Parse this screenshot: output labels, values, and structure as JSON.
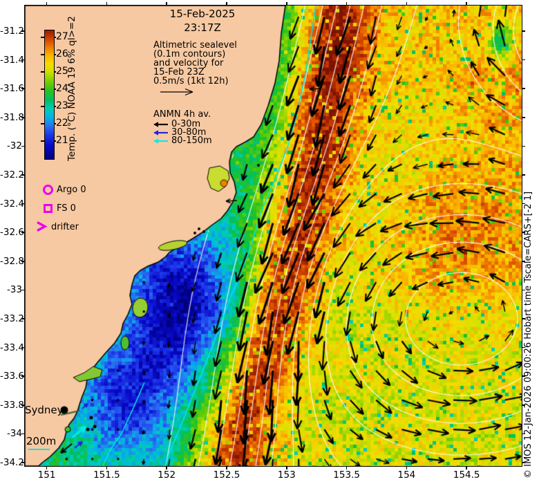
{
  "title": {
    "line1": "15-Feb-2025",
    "line2": "23:17Z"
  },
  "annotation": {
    "lines": [
      "Altimetric sealevel",
      "(0.1m contours)",
      "and velocity for",
      "15-Feb 23Z",
      "0.5m/s (1kt 12h)"
    ]
  },
  "anmn": {
    "title": "ANMN 4h av.",
    "entries": [
      {
        "label": "0-30m",
        "color": "#000000"
      },
      {
        "label": "30-80m",
        "color": "#2222dd"
      },
      {
        "label": "80-150m",
        "color": "#00eeee"
      }
    ]
  },
  "markers": [
    {
      "label": "Argo 0",
      "shape": "circle",
      "color": "#ee00ee"
    },
    {
      "label": "FS 0",
      "shape": "square",
      "color": "#ee00ee"
    },
    {
      "label": "drifter",
      "shape": "chevron",
      "color": "#ee00ee"
    }
  ],
  "colorbar": {
    "label": "Temp. (°C) NOAA 19 6% ql>=2",
    "ticks": [
      27,
      26,
      25,
      24,
      23,
      22,
      21
    ]
  },
  "axes": {
    "x_ticks": [
      "151",
      "151.5",
      "152",
      "152.5",
      "153",
      "153.5",
      "154",
      "154.5"
    ],
    "y_ticks": [
      "-31.2",
      "-31.4",
      "-31.6",
      "-31.8",
      "-32",
      "-32.2",
      "-32.4",
      "-32.6",
      "-32.8",
      "-33",
      "-33.2",
      "-33.4",
      "-33.6",
      "-33.8",
      "-34",
      "-34.2"
    ]
  },
  "map_labels": {
    "city": "Sydney",
    "depth_scale": "200m"
  },
  "credit": "© IMOS 12-Jan-2026 09:00:26 Hobart time Tscale=CARS+[-2 1]",
  "colors": {
    "land": "#f7c9a2",
    "sealevel_contour": "#ffffff",
    "isobath_200m": "#00e6e6",
    "velocity_arrow": "#000000",
    "marker": "#ee00ee"
  }
}
